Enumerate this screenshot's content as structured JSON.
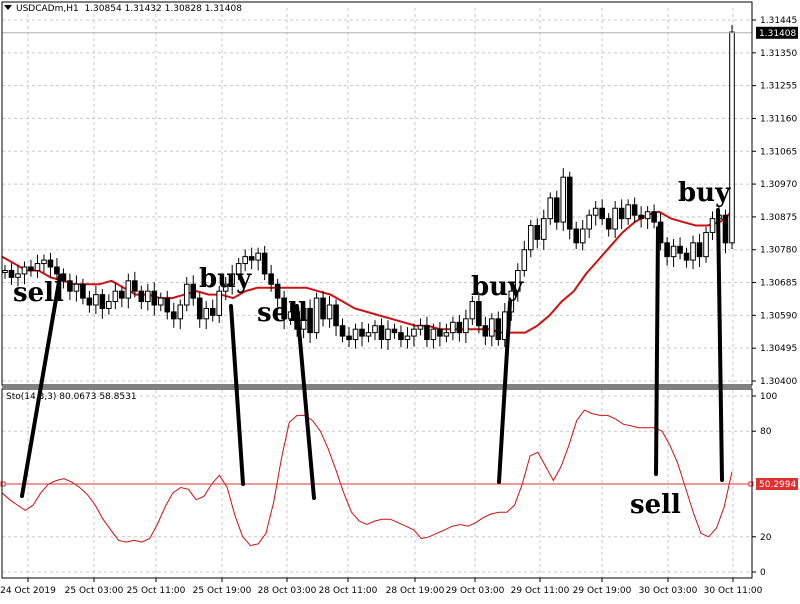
{
  "header": {
    "symbol": "USDCADm,H1",
    "ohlc": "1.30854 1.31432 1.30828 1.31408"
  },
  "indicator": {
    "label": "Sto(14,3,3) 80.0673 58.8531",
    "level_value": 50,
    "level_label": "50.2994"
  },
  "colors": {
    "ma": "#cc1111",
    "stoch": "#cc1111",
    "level": "#e03030",
    "candle": "#000000"
  },
  "annotations": {
    "labels": [
      {
        "id": "sell-1",
        "text": "sell"
      },
      {
        "id": "buy-1",
        "text": "buy"
      },
      {
        "id": "sell-2",
        "text": "sell"
      },
      {
        "id": "buy-2",
        "text": "buy"
      },
      {
        "id": "buy-3",
        "text": "buy"
      },
      {
        "id": "sell-3",
        "text": "sell"
      }
    ]
  },
  "chart_data": [
    {
      "type": "candlestick",
      "title": "USDCADm,H1",
      "ylim": [
        1.304,
        1.31445
      ],
      "price_ticks": [
        "1.31445",
        "1.31350",
        "1.31255",
        "1.31160",
        "1.31065",
        "1.30970",
        "1.30875",
        "1.30780",
        "1.30685",
        "1.30590",
        "1.30495",
        "1.30400"
      ],
      "current_price": "1.31408",
      "x_ticks": [
        "24 Oct 2019",
        "25 Oct 03:00",
        "25 Oct 11:00",
        "25 Oct 19:00",
        "28 Oct 03:00",
        "28 Oct 11:00",
        "28 Oct 19:00",
        "29 Oct 03:00",
        "29 Oct 11:00",
        "29 Oct 19:00",
        "30 Oct 03:00",
        "30 Oct 11:00"
      ],
      "grid": true,
      "closes": [
        1.3072,
        1.307,
        1.3071,
        1.3073,
        1.3072,
        1.3074,
        1.3075,
        1.3073,
        1.3071,
        1.3069,
        1.3066,
        1.3068,
        1.3064,
        1.3062,
        1.3065,
        1.3061,
        1.3063,
        1.3066,
        1.3064,
        1.3069,
        1.3066,
        1.3063,
        1.3066,
        1.3062,
        1.3064,
        1.306,
        1.3058,
        1.3062,
        1.3068,
        1.3064,
        1.3058,
        1.3061,
        1.3059,
        1.3066,
        1.3068,
        1.3071,
        1.3074,
        1.3076,
        1.3075,
        1.3077,
        1.3071,
        1.3068,
        1.3064,
        1.3058,
        1.306,
        1.3055,
        1.3061,
        1.3054,
        1.3064,
        1.3058,
        1.3062,
        1.3056,
        1.3053,
        1.3052,
        1.3055,
        1.3053,
        1.3054,
        1.3056,
        1.3052,
        1.3055,
        1.3054,
        1.3052,
        1.3053,
        1.3055,
        1.3056,
        1.3052,
        1.3055,
        1.3053,
        1.3054,
        1.3057,
        1.3054,
        1.3058,
        1.3063,
        1.3056,
        1.3053,
        1.3058,
        1.3052,
        1.306,
        1.3066,
        1.3072,
        1.3078,
        1.3085,
        1.3081,
        1.3087,
        1.3093,
        1.3086,
        1.3099,
        1.3084,
        1.308,
        1.3084,
        1.3088,
        1.309,
        1.3087,
        1.3084,
        1.309,
        1.3087,
        1.3091,
        1.3088,
        1.3087,
        1.3089,
        1.3086,
        1.308,
        1.3076,
        1.3079,
        1.3077,
        1.3075,
        1.308,
        1.3076,
        1.3083,
        1.3087,
        1.3088,
        1.308,
        1.3141
      ],
      "moving_average_values": [
        1.3076,
        1.3074,
        1.3072,
        1.3072,
        1.307,
        1.3069,
        1.3068,
        1.3068,
        1.3068,
        1.3069,
        1.3067,
        1.3065,
        1.3065,
        1.3064,
        1.3064,
        1.3065,
        1.3066,
        1.3065,
        1.3065,
        1.3064,
        1.3066,
        1.3067,
        1.3067,
        1.3067,
        1.3067,
        1.3067,
        1.3066,
        1.3065,
        1.3063,
        1.3061,
        1.306,
        1.3059,
        1.3058,
        1.3057,
        1.3056,
        1.3056,
        1.3055,
        1.3055,
        1.3055,
        1.3055,
        1.3055,
        1.3054,
        1.3054,
        1.3054,
        1.3056,
        1.3059,
        1.3063,
        1.3066,
        1.3071,
        1.3075,
        1.3079,
        1.3083,
        1.3086,
        1.3088,
        1.3089,
        1.3087,
        1.3086,
        1.3085,
        1.3085,
        1.3086,
        1.3089
      ]
    },
    {
      "type": "line",
      "title": "Sto(14,3,3) 80.0673 58.8531",
      "ylim": [
        0,
        100
      ],
      "y_ticks": [
        100,
        80,
        20,
        0
      ],
      "level": 50.2994,
      "series": [
        {
          "values": [
            45,
            41,
            38,
            35,
            38,
            45,
            50,
            52,
            53,
            51,
            48,
            44,
            38,
            30,
            24,
            18,
            17,
            18,
            17,
            19,
            27,
            37,
            45,
            48,
            47,
            41,
            43,
            50,
            55,
            48,
            32,
            20,
            15,
            16,
            22,
            40,
            65,
            85,
            89,
            89,
            86,
            80,
            70,
            58,
            45,
            34,
            29,
            27,
            29,
            30,
            30,
            28,
            26,
            24,
            19,
            20,
            22,
            24,
            26,
            27,
            26,
            28,
            31,
            33,
            34,
            34,
            38,
            50,
            66,
            68,
            60,
            52,
            60,
            72,
            86,
            92,
            90,
            89,
            89,
            87,
            84,
            83,
            82,
            82,
            82,
            80,
            72,
            62,
            48,
            34,
            22,
            20,
            25,
            37,
            57
          ]
        }
      ]
    }
  ]
}
